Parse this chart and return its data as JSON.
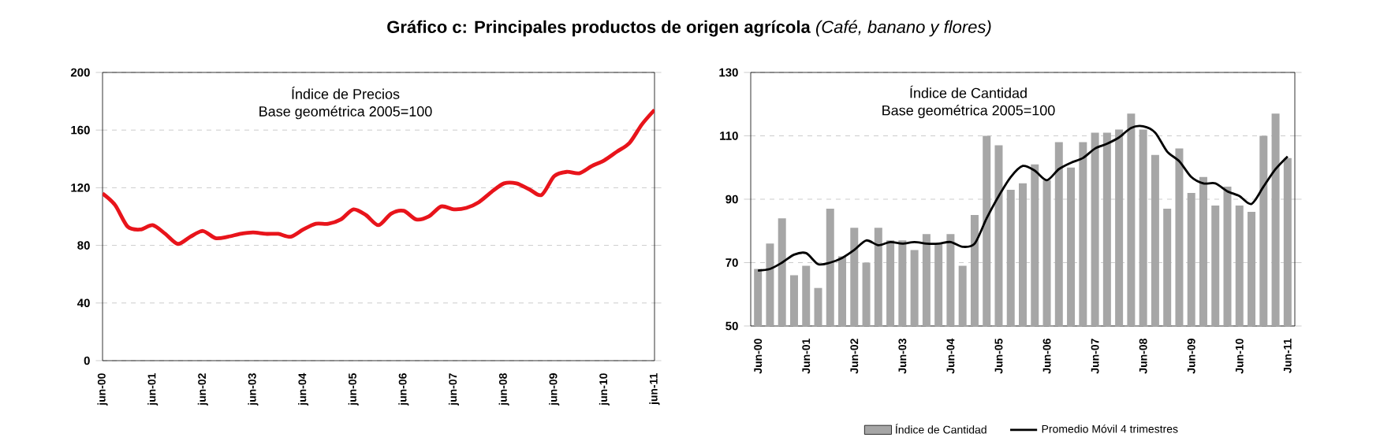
{
  "chart_data": [
    {
      "type": "line",
      "title": "**Gráfico c: Principales productos de origen agrícola** *(Café, banano y flores)*",
      "annotations": [
        "Índice de Precios",
        "Base geométrica 2005=100"
      ],
      "categories": [
        "jun-00",
        null,
        null,
        null,
        "jun-01",
        null,
        null,
        null,
        "jun-02",
        null,
        null,
        null,
        "jun-03",
        null,
        null,
        null,
        "jun-04",
        null,
        null,
        null,
        "jun-05",
        null,
        null,
        null,
        "jun-06",
        null,
        null,
        null,
        "jun-07",
        null,
        null,
        null,
        "jun-08",
        null,
        null,
        null,
        "jun-09",
        null,
        null,
        null,
        "jun-10",
        null,
        null,
        null,
        "jun-11"
      ],
      "values": [
        116,
        108,
        93,
        91,
        94,
        88,
        81,
        86,
        90,
        85,
        86,
        88,
        89,
        88,
        88,
        86,
        91,
        95,
        95,
        98,
        105,
        101,
        94,
        102,
        104,
        98,
        100,
        107,
        105,
        106,
        110,
        117,
        123,
        123,
        119,
        115,
        128,
        131,
        130,
        135,
        139,
        145,
        151,
        164,
        174
      ],
      "color": "#e8141b",
      "ylim": [
        0,
        200
      ],
      "yticks": [
        0,
        40,
        80,
        120,
        160,
        200
      ],
      "grid": "y"
    },
    {
      "type": "bar",
      "annotations": [
        "Índice de Cantidad",
        "Base geométrica 2005=100"
      ],
      "categories": [
        "Jun-00",
        null,
        null,
        null,
        "Jun-01",
        null,
        null,
        null,
        "Jun-02",
        null,
        null,
        null,
        "Jun-03",
        null,
        null,
        null,
        "Jun-04",
        null,
        null,
        null,
        "Jun-05",
        null,
        null,
        null,
        "Jun-06",
        null,
        null,
        null,
        "Jun-07",
        null,
        null,
        null,
        "Jun-08",
        null,
        null,
        null,
        "Jun-09",
        null,
        null,
        null,
        "Jun-10",
        null,
        null,
        null,
        "Jun-11"
      ],
      "series": [
        {
          "name": "Índice de Cantidad",
          "color": "#a6a6a6",
          "values": [
            68,
            76,
            84,
            66,
            69,
            62,
            87,
            72,
            81,
            70,
            81,
            77,
            77,
            74,
            79,
            76,
            79,
            69,
            85,
            110,
            107,
            93,
            95,
            101,
            96,
            108,
            100,
            108,
            111,
            111,
            112,
            117,
            112,
            104,
            87,
            106,
            92,
            97,
            88,
            94,
            88,
            86,
            110,
            117,
            103
          ]
        },
        {
          "name": "Promedio Móvil 4 trimestres",
          "type": "line",
          "color": "#000000",
          "values": [
            67.5,
            68,
            70,
            72.5,
            73,
            69.5,
            70,
            71.5,
            74,
            77,
            75.5,
            76.5,
            76,
            76.5,
            76,
            76,
            76.5,
            75,
            76,
            84,
            91,
            97,
            100.5,
            99,
            96,
            99.5,
            101.5,
            103,
            106,
            107.5,
            109.5,
            112.5,
            113,
            111,
            105,
            102,
            97,
            95,
            95,
            92.5,
            91,
            88.5,
            94,
            99.5,
            103.5
          ]
        }
      ],
      "ylim": [
        50,
        130
      ],
      "yticks": [
        50,
        70,
        90,
        110,
        130
      ],
      "grid": "y",
      "legend": "bottom"
    }
  ]
}
